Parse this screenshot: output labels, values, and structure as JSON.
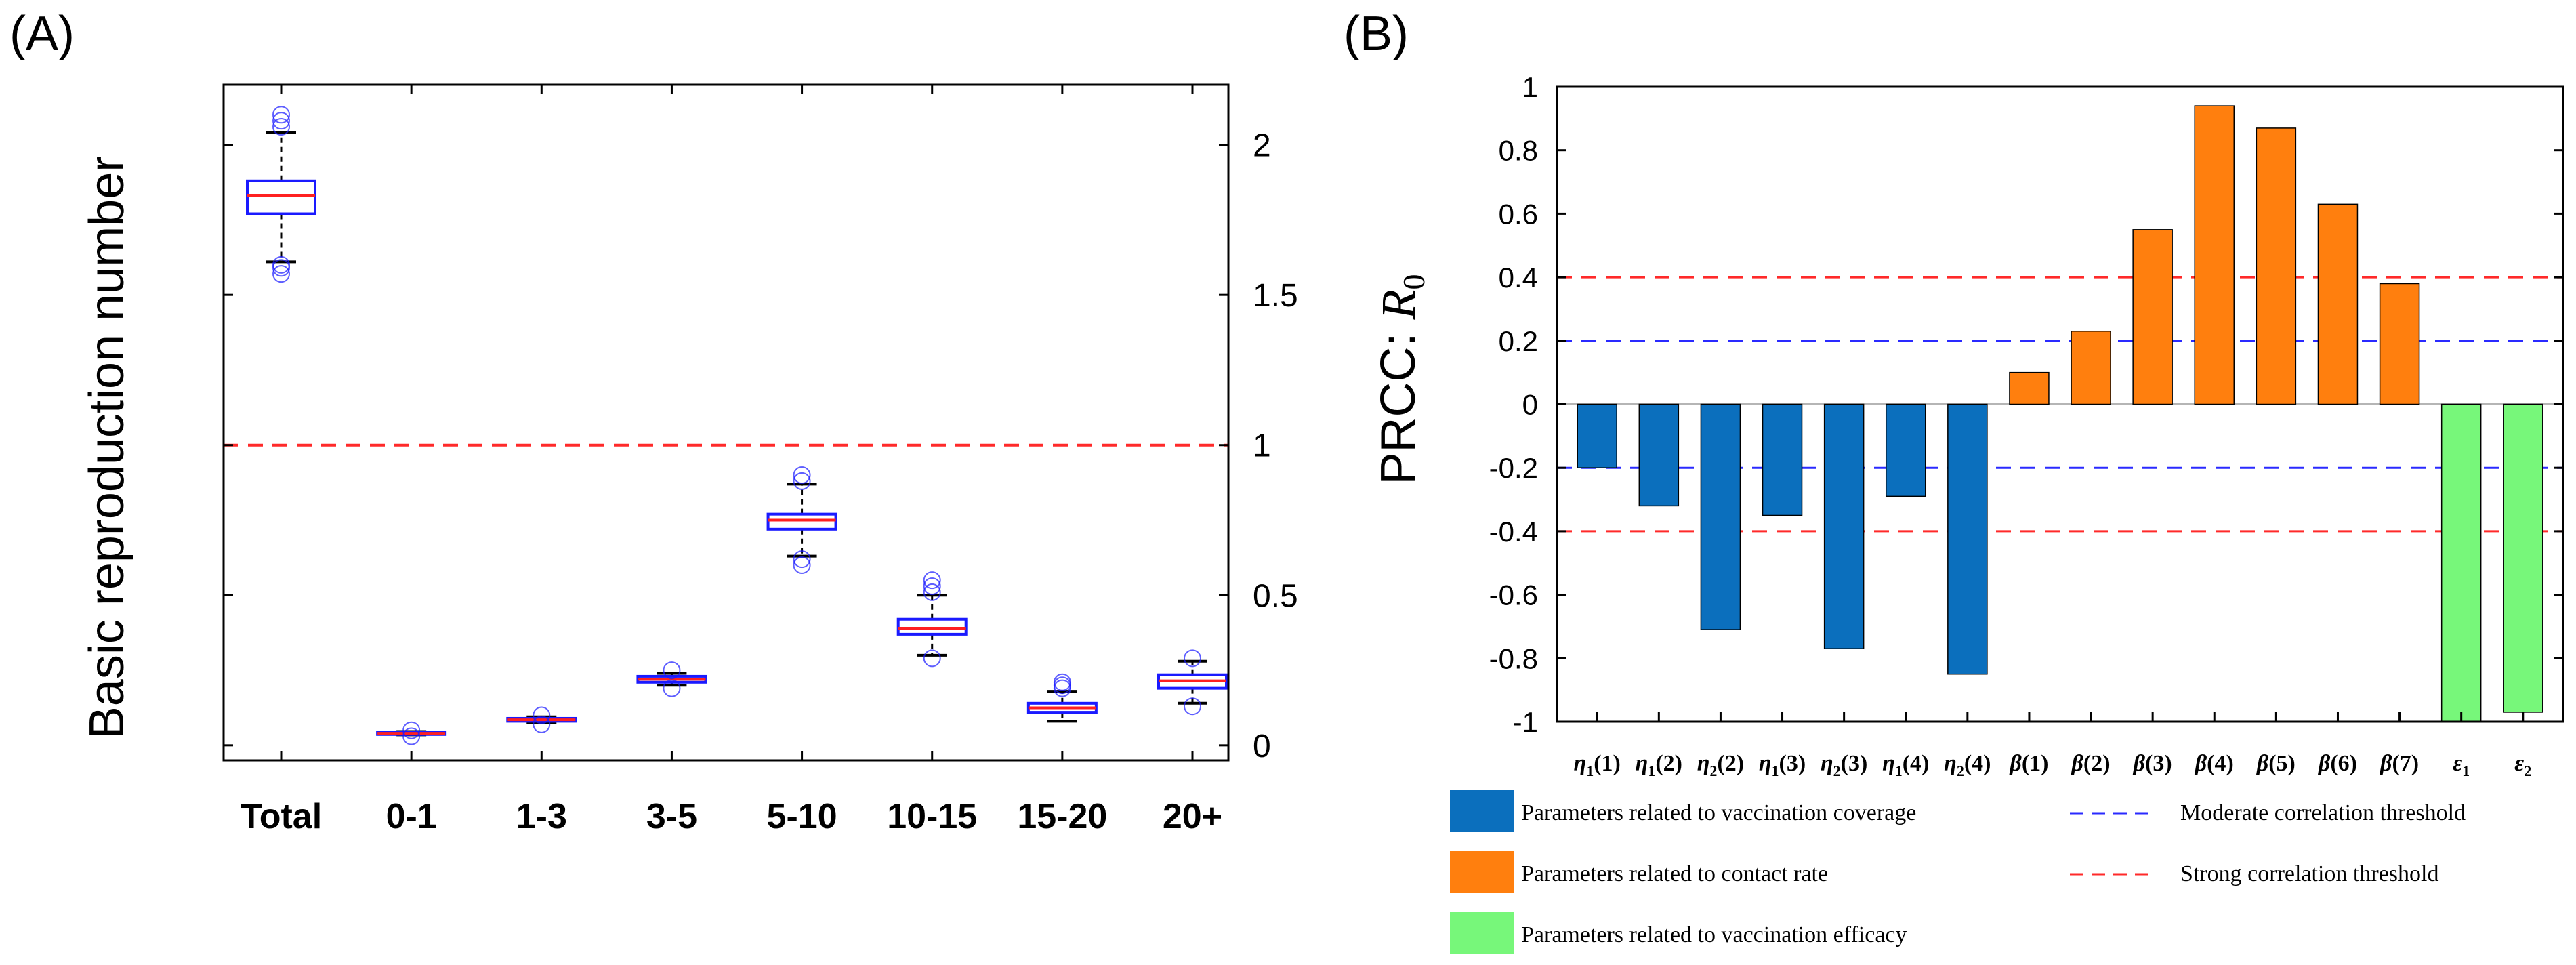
{
  "colors": {
    "axis": "#000000",
    "box": "#1a1aff",
    "median": "#ff2020",
    "outlier": "#1a1aff",
    "threshold_strong": "#ff2a2a",
    "threshold_moderate": "#2a2aff",
    "coverage": "#0b6fbd",
    "contact": "#ff7f0e",
    "efficacy": "#77f77a"
  },
  "chart_data": [
    {
      "panel_label": "(A)",
      "type": "box",
      "ylabel": "Basic reproduction number",
      "xlabel": "",
      "ylim": [
        -0.05,
        2.2
      ],
      "yticks": [
        0,
        0.5,
        1,
        1.5,
        2
      ],
      "ytick_labels": [
        "0",
        "0.5",
        "1",
        "1.5",
        "2"
      ],
      "categories": [
        "Total",
        "0-1",
        "1-3",
        "3-5",
        "5-10",
        "10-15",
        "15-20",
        "20+"
      ],
      "reference_line": {
        "y": 1,
        "style": "dashed"
      },
      "boxes": [
        {
          "category": "Total",
          "whisker_low": 1.61,
          "q1": 1.77,
          "median": 1.83,
          "q3": 1.88,
          "whisker_high": 2.04,
          "outliers": [
            1.57,
            1.59,
            1.6,
            2.06,
            2.08,
            2.1
          ]
        },
        {
          "category": "0-1",
          "whisker_low": 0.035,
          "q1": 0.038,
          "median": 0.04,
          "q3": 0.043,
          "whisker_high": 0.046,
          "outliers": [
            0.03,
            0.05
          ]
        },
        {
          "category": "1-3",
          "whisker_low": 0.075,
          "q1": 0.08,
          "median": 0.085,
          "q3": 0.09,
          "whisker_high": 0.095,
          "outliers": [
            0.07,
            0.1
          ]
        },
        {
          "category": "3-5",
          "whisker_low": 0.2,
          "q1": 0.21,
          "median": 0.22,
          "q3": 0.23,
          "whisker_high": 0.24,
          "outliers": [
            0.19,
            0.25
          ]
        },
        {
          "category": "5-10",
          "whisker_low": 0.63,
          "q1": 0.72,
          "median": 0.75,
          "q3": 0.77,
          "whisker_high": 0.87,
          "outliers": [
            0.6,
            0.62,
            0.88,
            0.9
          ]
        },
        {
          "category": "10-15",
          "whisker_low": 0.3,
          "q1": 0.37,
          "median": 0.39,
          "q3": 0.42,
          "whisker_high": 0.5,
          "outliers": [
            0.29,
            0.51,
            0.53,
            0.55
          ]
        },
        {
          "category": "15-20",
          "whisker_low": 0.08,
          "q1": 0.11,
          "median": 0.125,
          "q3": 0.14,
          "whisker_high": 0.18,
          "outliers": [
            0.19,
            0.2,
            0.21
          ]
        },
        {
          "category": "20+",
          "whisker_low": 0.14,
          "q1": 0.19,
          "median": 0.215,
          "q3": 0.235,
          "whisker_high": 0.28,
          "outliers": [
            0.13,
            0.29
          ]
        }
      ]
    },
    {
      "panel_label": "(B)",
      "type": "bar",
      "ylabel_prefix": "PRCC: ",
      "ylabel_symbol": "R",
      "ylabel_sub": "0",
      "ylim": [
        -1,
        1
      ],
      "yticks": [
        -1,
        -0.8,
        -0.6,
        -0.4,
        -0.2,
        0,
        0.2,
        0.4,
        0.6,
        0.8,
        1
      ],
      "ytick_labels": [
        "-1",
        "-0.8",
        "-0.6",
        "-0.4",
        "-0.2",
        "0",
        "0.2",
        "0.4",
        "0.6",
        "0.8",
        "1"
      ],
      "categories": [
        {
          "sym": "η",
          "sub": "1",
          "arg": "(1)"
        },
        {
          "sym": "η",
          "sub": "1",
          "arg": "(2)"
        },
        {
          "sym": "η",
          "sub": "2",
          "arg": "(2)"
        },
        {
          "sym": "η",
          "sub": "1",
          "arg": "(3)"
        },
        {
          "sym": "η",
          "sub": "2",
          "arg": "(3)"
        },
        {
          "sym": "η",
          "sub": "1",
          "arg": "(4)"
        },
        {
          "sym": "η",
          "sub": "2",
          "arg": "(4)"
        },
        {
          "sym": "β",
          "sub": "",
          "arg": "(1)"
        },
        {
          "sym": "β",
          "sub": "",
          "arg": "(2)"
        },
        {
          "sym": "β",
          "sub": "",
          "arg": "(3)"
        },
        {
          "sym": "β",
          "sub": "",
          "arg": "(4)"
        },
        {
          "sym": "β",
          "sub": "",
          "arg": "(5)"
        },
        {
          "sym": "β",
          "sub": "",
          "arg": "(6)"
        },
        {
          "sym": "β",
          "sub": "",
          "arg": "(7)"
        },
        {
          "sym": "ε",
          "sub": "1",
          "arg": ""
        },
        {
          "sym": "ε",
          "sub": "2",
          "arg": ""
        }
      ],
      "values": [
        -0.2,
        -0.32,
        -0.71,
        -0.35,
        -0.77,
        -0.29,
        -0.85,
        0.1,
        0.23,
        0.55,
        0.94,
        0.87,
        0.63,
        0.38,
        -1.0,
        -0.97
      ],
      "groups": [
        "coverage",
        "coverage",
        "coverage",
        "coverage",
        "coverage",
        "coverage",
        "coverage",
        "contact",
        "contact",
        "contact",
        "contact",
        "contact",
        "contact",
        "contact",
        "efficacy",
        "efficacy"
      ],
      "thresholds": [
        {
          "y": 0.4,
          "kind": "strong"
        },
        {
          "y": -0.4,
          "kind": "strong"
        },
        {
          "y": 0.2,
          "kind": "moderate"
        },
        {
          "y": -0.2,
          "kind": "moderate"
        }
      ],
      "legend": {
        "coverage": "Parameters related to vaccination coverage",
        "contact": "Parameters related to contact rate",
        "efficacy": "Parameters related to vaccination efficacy",
        "moderate": "Moderate correlation threshold",
        "strong": "Strong correlation threshold"
      }
    }
  ]
}
